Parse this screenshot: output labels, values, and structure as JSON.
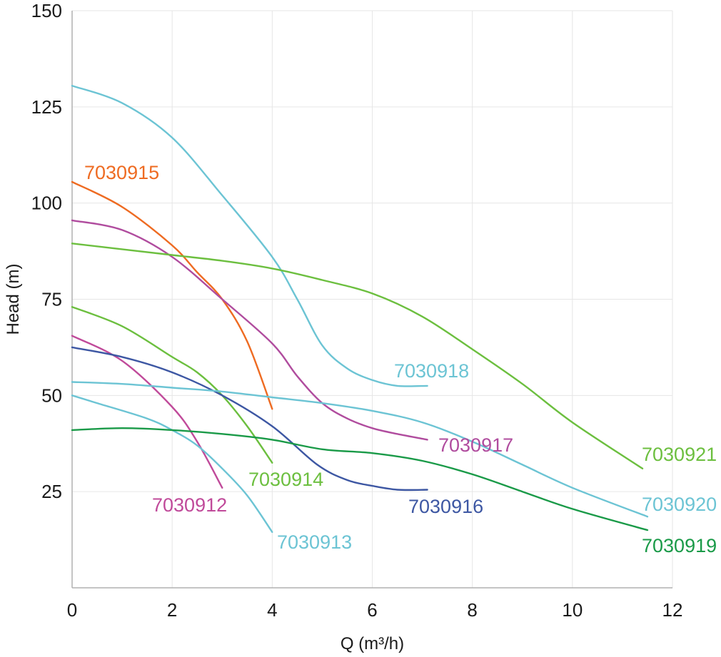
{
  "chart_data": {
    "type": "line",
    "xlabel": "Q (m³/h)",
    "ylabel": "Head (m)",
    "xlim": [
      0,
      12
    ],
    "ylim": [
      0,
      150
    ],
    "x_ticks": [
      0,
      2,
      4,
      6,
      8,
      10,
      12
    ],
    "y_ticks": [
      25,
      50,
      75,
      100,
      125,
      150
    ],
    "grid": true,
    "legend": "inline-labels",
    "series": [
      {
        "name": "7030912",
        "color": "#c04a9a",
        "points": [
          [
            0,
            65.5
          ],
          [
            1,
            59
          ],
          [
            2,
            47
          ],
          [
            2.5,
            38
          ],
          [
            3,
            26
          ]
        ]
      },
      {
        "name": "7030913",
        "color": "#6cc4d4",
        "points": [
          [
            0,
            50
          ],
          [
            0.5,
            48
          ],
          [
            1.5,
            44
          ],
          [
            2,
            41
          ],
          [
            2.5,
            37
          ],
          [
            3,
            31
          ],
          [
            3.5,
            24
          ],
          [
            4,
            14.5
          ]
        ]
      },
      {
        "name": "7030914",
        "color": "#6cbf3f",
        "points": [
          [
            0,
            73
          ],
          [
            1,
            68
          ],
          [
            2,
            60
          ],
          [
            2.5,
            56
          ],
          [
            3,
            50
          ],
          [
            3.5,
            42
          ],
          [
            4,
            32.5
          ]
        ]
      },
      {
        "name": "7030915",
        "color": "#ee6b22",
        "points": [
          [
            0,
            105.5
          ],
          [
            1,
            99
          ],
          [
            2,
            89
          ],
          [
            2.5,
            82
          ],
          [
            3,
            75
          ],
          [
            3.5,
            64
          ],
          [
            4,
            46.5
          ]
        ]
      },
      {
        "name": "7030916",
        "color": "#3d57a3",
        "points": [
          [
            0,
            62.5
          ],
          [
            1,
            60
          ],
          [
            2,
            56
          ],
          [
            3,
            50
          ],
          [
            4,
            42
          ],
          [
            4.9,
            32
          ],
          [
            5.5,
            28
          ],
          [
            6,
            26.5
          ],
          [
            6.5,
            25.5
          ],
          [
            7.1,
            25.5
          ]
        ]
      },
      {
        "name": "7030917",
        "color": "#b04c9e",
        "points": [
          [
            0,
            95.5
          ],
          [
            1,
            93
          ],
          [
            2,
            86
          ],
          [
            3,
            75
          ],
          [
            4,
            63.5
          ],
          [
            4.5,
            55
          ],
          [
            5,
            48
          ],
          [
            5.5,
            44
          ],
          [
            6,
            41.5
          ],
          [
            6.5,
            40
          ],
          [
            7.1,
            38.5
          ]
        ]
      },
      {
        "name": "7030918",
        "color": "#6cc4d4",
        "points": [
          [
            0,
            130.5
          ],
          [
            1,
            126
          ],
          [
            2,
            117
          ],
          [
            3,
            102
          ],
          [
            4,
            86
          ],
          [
            4.5,
            75
          ],
          [
            5,
            63
          ],
          [
            5.5,
            57
          ],
          [
            6,
            54
          ],
          [
            6.5,
            52.5
          ],
          [
            7.1,
            52.5
          ]
        ]
      },
      {
        "name": "7030919",
        "color": "#1a9a48",
        "points": [
          [
            0,
            41
          ],
          [
            1,
            41.5
          ],
          [
            2,
            41
          ],
          [
            3,
            40
          ],
          [
            4,
            38.5
          ],
          [
            5,
            36
          ],
          [
            6,
            35
          ],
          [
            7,
            33
          ],
          [
            8,
            29.5
          ],
          [
            9,
            25
          ],
          [
            10,
            20.5
          ],
          [
            11.5,
            15
          ]
        ]
      },
      {
        "name": "7030920",
        "color": "#6cc4d4",
        "points": [
          [
            0,
            53.5
          ],
          [
            1,
            53
          ],
          [
            2,
            52
          ],
          [
            3,
            51
          ],
          [
            4,
            49.5
          ],
          [
            5,
            48
          ],
          [
            6,
            46
          ],
          [
            7,
            43
          ],
          [
            8,
            38
          ],
          [
            9,
            32
          ],
          [
            10,
            26
          ],
          [
            11.5,
            18.5
          ]
        ]
      },
      {
        "name": "7030921",
        "color": "#6cbf3f",
        "points": [
          [
            0,
            89.5
          ],
          [
            1,
            88
          ],
          [
            2,
            86.5
          ],
          [
            3,
            85
          ],
          [
            4,
            83
          ],
          [
            5,
            80
          ],
          [
            6,
            76.5
          ],
          [
            7,
            70.5
          ],
          [
            8,
            62
          ],
          [
            9,
            53
          ],
          [
            10,
            43
          ],
          [
            11.4,
            31
          ]
        ]
      }
    ]
  }
}
